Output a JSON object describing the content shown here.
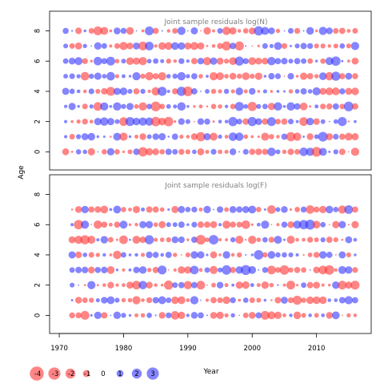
{
  "chart_data": [
    {
      "type": "scatter",
      "title": "Joint sample residuals log(N)",
      "ylabel": "Age",
      "xlim": [
        1968.5,
        2018.5
      ],
      "ylim": [
        -1.2,
        9.3
      ],
      "years": [
        1971,
        2016
      ],
      "ages": [
        0,
        8
      ],
      "yticks": [
        0,
        2,
        4,
        6,
        8
      ],
      "encoding": "bubble area ~ |residual|; red = negative, blue = positive",
      "positive_color": "#3333ff",
      "negative_color": "#ff3333",
      "seed": 17
    },
    {
      "type": "scatter",
      "title": "Joint sample residuals log(F)",
      "ylabel": "Age",
      "xlim": [
        1968.5,
        2018.5
      ],
      "ylim": [
        -1.2,
        9.3
      ],
      "years": [
        1972,
        2016
      ],
      "ages": [
        0,
        7
      ],
      "yticks": [
        0,
        2,
        4,
        6,
        8
      ],
      "encoding": "bubble area ~ |residual|; red = negative, blue = positive",
      "positive_color": "#3333ff",
      "negative_color": "#ff3333",
      "seed": 91
    }
  ],
  "shared": {
    "ylabel": "Age",
    "xlabel": "Year",
    "xticks": [
      1970,
      1980,
      1990,
      2000,
      2010
    ],
    "legend_values": [
      -4,
      -3,
      -2,
      -1,
      0,
      1,
      2,
      3
    ]
  }
}
